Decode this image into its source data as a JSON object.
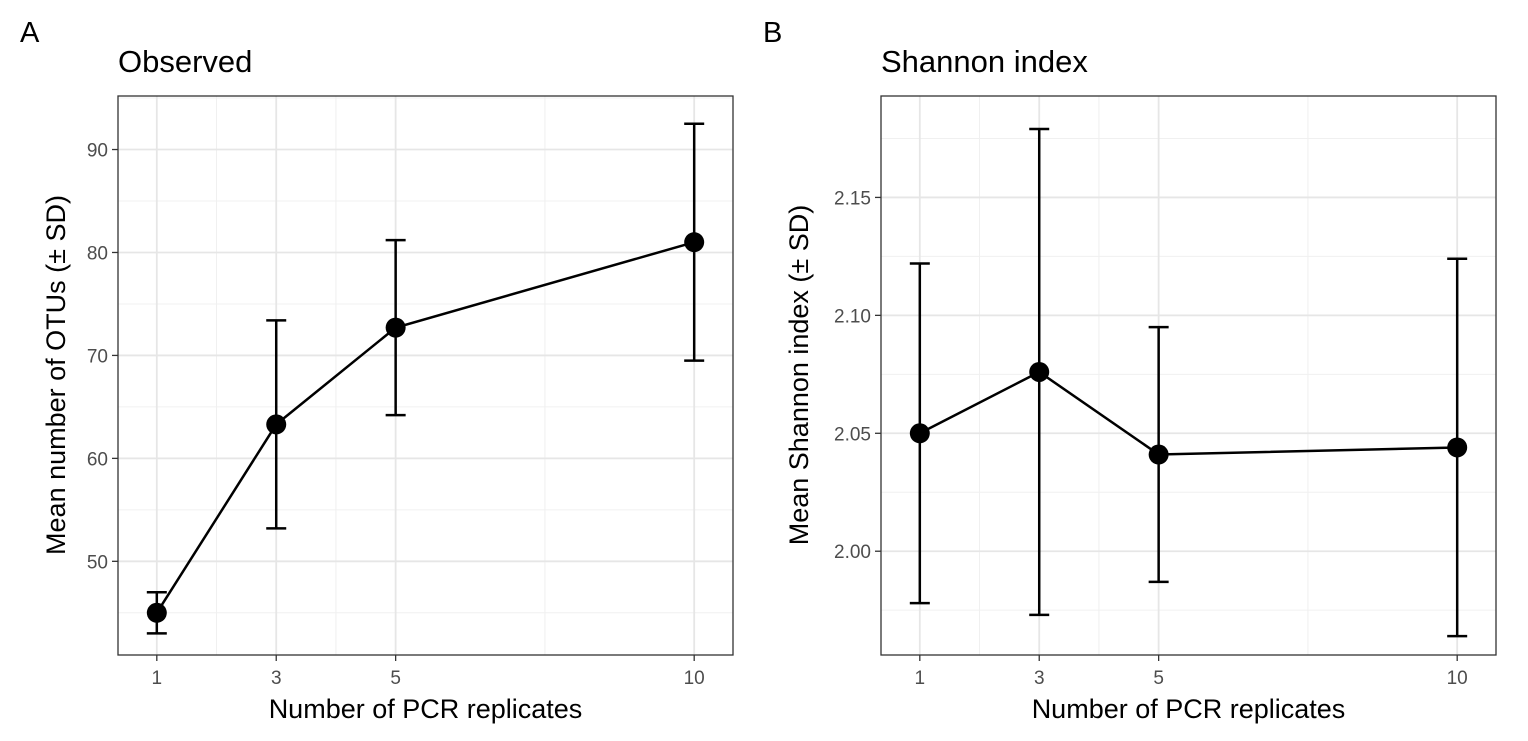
{
  "chart_data": [
    {
      "panel_tag": "A",
      "type": "line",
      "title": "Observed",
      "xlabel": "Number of PCR replicates",
      "ylabel": "Mean number of OTUs (± SD)",
      "x": [
        1,
        3,
        5,
        10
      ],
      "y": [
        45.0,
        63.3,
        72.7,
        81.0
      ],
      "sd": [
        2.0,
        10.1,
        8.5,
        11.5
      ],
      "xticks": [
        1,
        3,
        5,
        10
      ],
      "yticks": [
        50,
        60,
        70,
        80,
        90
      ],
      "xlim": [
        0.35,
        10.65
      ],
      "ylim": [
        40.9,
        95.2
      ],
      "grid": true,
      "error_bars": true
    },
    {
      "panel_tag": "B",
      "type": "line",
      "title": "Shannon index",
      "xlabel": "Number of PCR replicates",
      "ylabel": "Mean Shannon index (± SD)",
      "x": [
        1,
        3,
        5,
        10
      ],
      "y": [
        2.05,
        2.076,
        2.041,
        2.044
      ],
      "sd": [
        0.072,
        0.103,
        0.054,
        0.08
      ],
      "xticks": [
        1,
        3,
        5,
        10
      ],
      "yticks": [
        "2.00",
        "2.05",
        "2.10",
        "2.15"
      ],
      "xlim": [
        0.35,
        10.65
      ],
      "ylim": [
        1.956,
        2.193
      ],
      "grid": true,
      "error_bars": true
    }
  ]
}
